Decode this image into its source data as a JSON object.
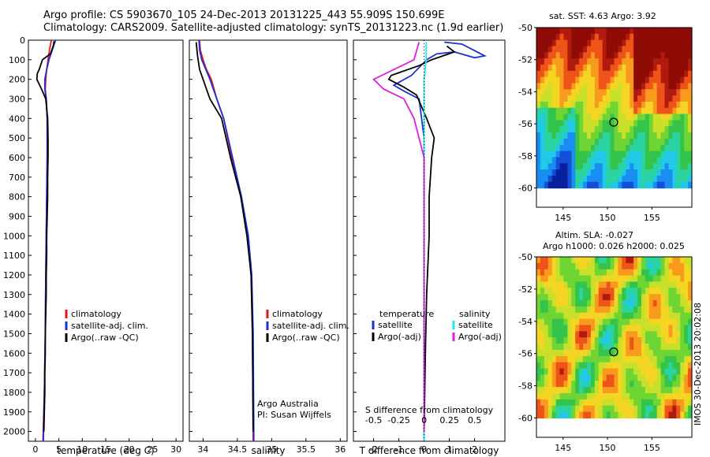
{
  "header": {
    "line1": "Argo profile: CS 5903670_105 24-Dec-2013 20131225_443 55.909S 150.699E",
    "line2": "Climatology: CARS2009. Satellite-adjusted climatology: synTS_20131223.nc (1.9d earlier)"
  },
  "colors": {
    "climatology": "#e8141c",
    "satellite": "#1c2fd8",
    "argo": "#000000",
    "cyan": "#27e6e6",
    "magenta": "#e01ee0"
  },
  "chart_data": [
    {
      "type": "line",
      "name": "temperature profile",
      "xlabel": "temperature (deg C)",
      "xlim": [
        -1.5,
        31.5
      ],
      "xticks": [
        0,
        5,
        10,
        15,
        20,
        25,
        30
      ],
      "ylim": [
        0,
        2050
      ],
      "yticks": [
        0,
        100,
        200,
        300,
        400,
        500,
        600,
        700,
        800,
        900,
        1000,
        1100,
        1200,
        1300,
        1400,
        1500,
        1600,
        1700,
        1800,
        1900,
        2000
      ],
      "legend": [
        "climatology",
        "satellite-adj. clim.",
        "Argo(..raw -QC)"
      ],
      "series": [
        {
          "name": "climatology",
          "color": "red",
          "points": [
            [
              3.4,
              0
            ],
            [
              3.0,
              50
            ],
            [
              2.7,
              100
            ],
            [
              2.4,
              150
            ],
            [
              2.2,
              200
            ],
            [
              2.1,
              250
            ],
            [
              2.3,
              300
            ],
            [
              2.5,
              400
            ],
            [
              2.5,
              600
            ],
            [
              2.4,
              800
            ],
            [
              2.3,
              1000
            ],
            [
              2.2,
              1200
            ],
            [
              2.1,
              1500
            ],
            [
              1.9,
              1800
            ],
            [
              1.6,
              2050
            ]
          ]
        },
        {
          "name": "satellite-adj. clim.",
          "color": "blue",
          "points": [
            [
              4.3,
              0
            ],
            [
              3.6,
              50
            ],
            [
              2.9,
              100
            ],
            [
              2.4,
              150
            ],
            [
              2.0,
              200
            ],
            [
              2.0,
              250
            ],
            [
              2.3,
              300
            ],
            [
              2.5,
              400
            ],
            [
              2.5,
              600
            ],
            [
              2.4,
              800
            ],
            [
              2.3,
              1000
            ],
            [
              2.2,
              1200
            ],
            [
              2.1,
              1500
            ],
            [
              1.9,
              1800
            ],
            [
              1.7,
              2050
            ]
          ]
        },
        {
          "name": "Argo(..raw -QC)",
          "color": "black",
          "points": [
            [
              4.0,
              5
            ],
            [
              3.8,
              30
            ],
            [
              3.5,
              50
            ],
            [
              3.2,
              70
            ],
            [
              1.5,
              100
            ],
            [
              0.8,
              150
            ],
            [
              0.4,
              170
            ],
            [
              0.3,
              200
            ],
            [
              0.9,
              230
            ],
            [
              1.5,
              260
            ],
            [
              2.2,
              300
            ],
            [
              2.6,
              400
            ],
            [
              2.7,
              500
            ],
            [
              2.7,
              600
            ],
            [
              2.6,
              700
            ],
            [
              2.6,
              800
            ],
            [
              2.5,
              900
            ],
            [
              2.4,
              1000
            ],
            [
              2.4,
              1100
            ],
            [
              2.3,
              1200
            ],
            [
              2.3,
              1300
            ],
            [
              2.2,
              1400
            ],
            [
              2.1,
              1500
            ],
            [
              2.1,
              1600
            ],
            [
              2.0,
              1700
            ],
            [
              2.0,
              1800
            ],
            [
              1.9,
              1900
            ],
            [
              1.8,
              2000
            ]
          ]
        }
      ]
    },
    {
      "type": "line",
      "name": "salinity profile",
      "xlabel": "salinity",
      "xlim": [
        33.8,
        36.1
      ],
      "xticks": [
        34,
        34.5,
        35,
        35.5,
        36
      ],
      "ylim": [
        0,
        2050
      ],
      "legend": [
        "climatology",
        "satellite-adj. clim.",
        "Argo(..raw -QC)"
      ],
      "annotations": [
        "Argo Australia",
        "PI: Susan Wijffels"
      ],
      "series": [
        {
          "name": "climatology",
          "color": "red",
          "points": [
            [
              33.95,
              0
            ],
            [
              33.96,
              50
            ],
            [
              34.0,
              100
            ],
            [
              34.05,
              150
            ],
            [
              34.12,
              200
            ],
            [
              34.2,
              300
            ],
            [
              34.3,
              400
            ],
            [
              34.42,
              600
            ],
            [
              34.55,
              800
            ],
            [
              34.65,
              1000
            ],
            [
              34.7,
              1200
            ],
            [
              34.72,
              1500
            ],
            [
              34.73,
              2000
            ],
            [
              34.73,
              2050
            ]
          ]
        },
        {
          "name": "satellite-adj. clim.",
          "color": "blue",
          "points": [
            [
              33.94,
              0
            ],
            [
              33.95,
              50
            ],
            [
              33.98,
              100
            ],
            [
              34.04,
              150
            ],
            [
              34.1,
              200
            ],
            [
              34.2,
              300
            ],
            [
              34.3,
              400
            ],
            [
              34.43,
              600
            ],
            [
              34.56,
              800
            ],
            [
              34.66,
              1000
            ],
            [
              34.71,
              1200
            ],
            [
              34.73,
              1500
            ],
            [
              34.74,
              2000
            ],
            [
              34.74,
              2050
            ]
          ]
        },
        {
          "name": "Argo(..raw -QC)",
          "color": "black",
          "points": [
            [
              33.9,
              10
            ],
            [
              33.92,
              80
            ],
            [
              33.95,
              150
            ],
            [
              34.0,
              200
            ],
            [
              34.1,
              300
            ],
            [
              34.27,
              400
            ],
            [
              34.4,
              600
            ],
            [
              34.55,
              800
            ],
            [
              34.64,
              1000
            ],
            [
              34.7,
              1200
            ],
            [
              34.72,
              1500
            ],
            [
              34.73,
              2000
            ]
          ]
        }
      ]
    },
    {
      "type": "line",
      "name": "difference from climatology",
      "xlabel": "T difference from climatology",
      "xlabel_top": "S difference from climatology",
      "xlim_T": [
        -2.8,
        3.2
      ],
      "xticks_T": [
        -2,
        -1,
        0,
        1,
        2
      ],
      "xticks_S": [
        "-0.5",
        "-0.25",
        "0",
        "0.25",
        "0.5"
      ],
      "ylim": [
        0,
        2050
      ],
      "legend_temperature": [
        "temperature",
        "satellite",
        "Argo(-adj)"
      ],
      "legend_salinity": [
        "salinity",
        "satellite",
        "Argo(-adj)"
      ],
      "series": [
        {
          "name": "T satellite",
          "color": "blue",
          "points": [
            [
              0.8,
              10
            ],
            [
              1.5,
              20
            ],
            [
              2.4,
              80
            ],
            [
              2.0,
              90
            ],
            [
              1.2,
              60
            ],
            [
              0.5,
              70
            ],
            [
              0.1,
              100
            ],
            [
              -0.5,
              180
            ],
            [
              -1.2,
              230
            ],
            [
              -0.8,
              260
            ],
            [
              -0.2,
              300
            ],
            [
              0.0,
              500
            ],
            [
              0.0,
              1000
            ],
            [
              0.0,
              1500
            ],
            [
              0.0,
              2050
            ]
          ]
        },
        {
          "name": "T Argo(-adj)",
          "color": "black",
          "points": [
            [
              0.9,
              30
            ],
            [
              1.2,
              60
            ],
            [
              0.3,
              100
            ],
            [
              -0.2,
              130
            ],
            [
              -1.3,
              180
            ],
            [
              -1.4,
              200
            ],
            [
              -0.8,
              240
            ],
            [
              -0.3,
              280
            ],
            [
              0.1,
              400
            ],
            [
              0.4,
              500
            ],
            [
              0.3,
              600
            ],
            [
              0.2,
              800
            ],
            [
              0.2,
              1000
            ],
            [
              0.1,
              1300
            ],
            [
              0.05,
              1600
            ],
            [
              0.0,
              2000
            ]
          ]
        },
        {
          "name": "S satellite",
          "color": "cyan",
          "points": [
            [
              0.02,
              10
            ],
            [
              0.02,
              100
            ],
            [
              0.0,
              200
            ],
            [
              0.0,
              400
            ],
            [
              0.0,
              1000
            ],
            [
              0.0,
              2050
            ]
          ]
        },
        {
          "name": "S Argo(-adj)",
          "color": "magenta",
          "points": [
            [
              -0.05,
              10
            ],
            [
              -0.1,
              100
            ],
            [
              -0.5,
              200
            ],
            [
              -0.4,
              250
            ],
            [
              -0.2,
              300
            ],
            [
              -0.1,
              400
            ],
            [
              0.0,
              600
            ],
            [
              0.0,
              1000
            ],
            [
              0.0,
              2000
            ]
          ]
        }
      ]
    },
    {
      "type": "heatmap",
      "name": "sat SST map",
      "title": "sat. SST: 4.63 Argo: 3.92",
      "xticks": [
        145,
        150,
        155
      ],
      "yticks": [
        -50,
        -52,
        -54,
        -56,
        -58,
        -60
      ],
      "xlim": [
        142,
        159.5
      ],
      "ylim": [
        -61.2,
        -50
      ],
      "marker": [
        150.7,
        -55.9
      ]
    },
    {
      "type": "heatmap",
      "name": "altimetry SLA map",
      "title": "Altim. SLA: -0.027",
      "subtitle": "Argo h1000: 0.026 h2000: 0.025",
      "xticks": [
        145,
        150,
        155
      ],
      "yticks": [
        -50,
        -52,
        -54,
        -56,
        -58,
        -60
      ],
      "xlim": [
        142,
        159.5
      ],
      "ylim": [
        -61.2,
        -50
      ],
      "marker": [
        150.7,
        -55.9
      ]
    }
  ],
  "watermark": "IMOS 30-Dec-2013 20:02:08"
}
